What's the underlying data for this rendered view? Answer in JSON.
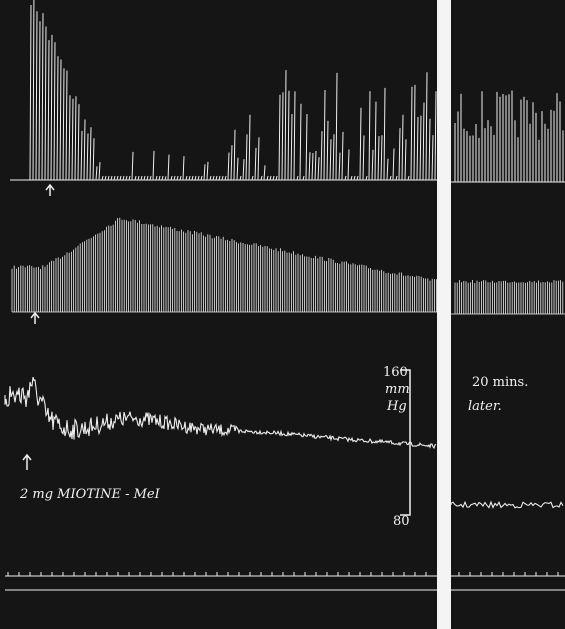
{
  "annotations": {
    "drug": "2 mg MIOTINE - MeI",
    "scale_top": "160",
    "scale_unit_1": "mm",
    "scale_unit_2": "Hg",
    "scale_bottom": "80",
    "later_1": "20 mins.",
    "later_2": "later."
  }
}
